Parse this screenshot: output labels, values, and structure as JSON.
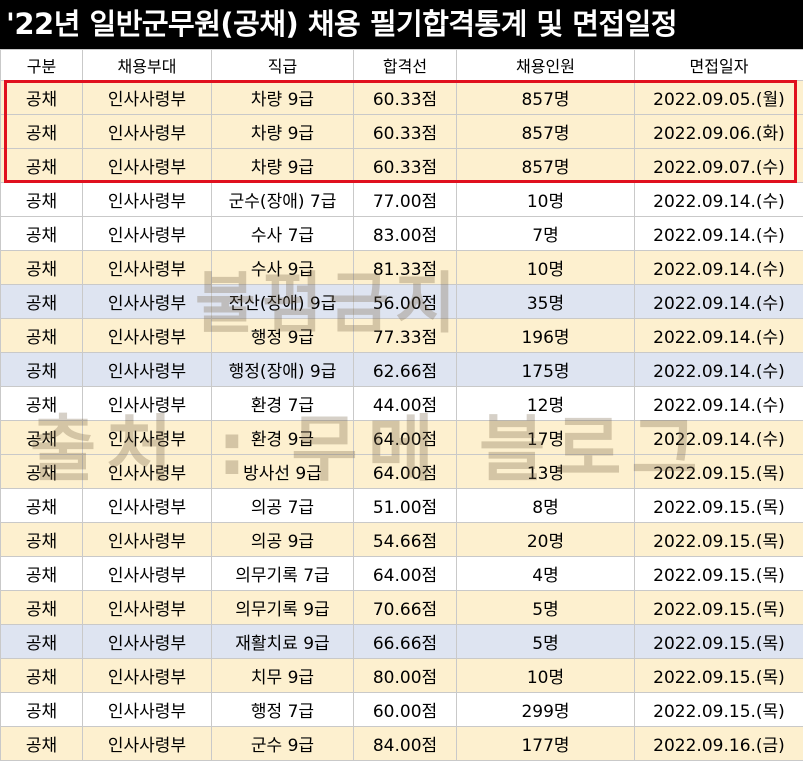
{
  "title": "'22년 일반군무원(공채) 채용 필기합격통계 및 면접일정",
  "columns": [
    "구분",
    "채용부대",
    "직급",
    "합격선",
    "채용인원",
    "면접일자"
  ],
  "rows": [
    {
      "type": "공채",
      "unit": "인사사령부",
      "grade": "차량 9급",
      "cutoff": "60.33점",
      "hires": "857명",
      "date": "2022.09.05.(월)",
      "shade": "y"
    },
    {
      "type": "공채",
      "unit": "인사사령부",
      "grade": "차량 9급",
      "cutoff": "60.33점",
      "hires": "857명",
      "date": "2022.09.06.(화)",
      "shade": "y"
    },
    {
      "type": "공채",
      "unit": "인사사령부",
      "grade": "차량 9급",
      "cutoff": "60.33점",
      "hires": "857명",
      "date": "2022.09.07.(수)",
      "shade": "y"
    },
    {
      "type": "공채",
      "unit": "인사사령부",
      "grade": "군수(장애) 7급",
      "cutoff": "77.00점",
      "hires": "10명",
      "date": "2022.09.14.(수)",
      "shade": "w"
    },
    {
      "type": "공채",
      "unit": "인사사령부",
      "grade": "수사 7급",
      "cutoff": "83.00점",
      "hires": "7명",
      "date": "2022.09.14.(수)",
      "shade": "w"
    },
    {
      "type": "공채",
      "unit": "인사사령부",
      "grade": "수사 9급",
      "cutoff": "81.33점",
      "hires": "10명",
      "date": "2022.09.14.(수)",
      "shade": "y"
    },
    {
      "type": "공채",
      "unit": "인사사령부",
      "grade": "전산(장애) 9급",
      "cutoff": "56.00점",
      "hires": "35명",
      "date": "2022.09.14.(수)",
      "shade": "b"
    },
    {
      "type": "공채",
      "unit": "인사사령부",
      "grade": "행정 9급",
      "cutoff": "77.33점",
      "hires": "196명",
      "date": "2022.09.14.(수)",
      "shade": "y"
    },
    {
      "type": "공채",
      "unit": "인사사령부",
      "grade": "행정(장애) 9급",
      "cutoff": "62.66점",
      "hires": "175명",
      "date": "2022.09.14.(수)",
      "shade": "b"
    },
    {
      "type": "공채",
      "unit": "인사사령부",
      "grade": "환경 7급",
      "cutoff": "44.00점",
      "hires": "12명",
      "date": "2022.09.14.(수)",
      "shade": "w"
    },
    {
      "type": "공채",
      "unit": "인사사령부",
      "grade": "환경 9급",
      "cutoff": "64.00점",
      "hires": "17명",
      "date": "2022.09.14.(수)",
      "shade": "y"
    },
    {
      "type": "공채",
      "unit": "인사사령부",
      "grade": "방사선 9급",
      "cutoff": "64.00점",
      "hires": "13명",
      "date": "2022.09.15.(목)",
      "shade": "y"
    },
    {
      "type": "공채",
      "unit": "인사사령부",
      "grade": "의공 7급",
      "cutoff": "51.00점",
      "hires": "8명",
      "date": "2022.09.15.(목)",
      "shade": "w"
    },
    {
      "type": "공채",
      "unit": "인사사령부",
      "grade": "의공 9급",
      "cutoff": "54.66점",
      "hires": "20명",
      "date": "2022.09.15.(목)",
      "shade": "y"
    },
    {
      "type": "공채",
      "unit": "인사사령부",
      "grade": "의무기록 7급",
      "cutoff": "64.00점",
      "hires": "4명",
      "date": "2022.09.15.(목)",
      "shade": "w"
    },
    {
      "type": "공채",
      "unit": "인사사령부",
      "grade": "의무기록 9급",
      "cutoff": "70.66점",
      "hires": "5명",
      "date": "2022.09.15.(목)",
      "shade": "y"
    },
    {
      "type": "공채",
      "unit": "인사사령부",
      "grade": "재활치료 9급",
      "cutoff": "66.66점",
      "hires": "5명",
      "date": "2022.09.15.(목)",
      "shade": "b"
    },
    {
      "type": "공채",
      "unit": "인사사령부",
      "grade": "치무 9급",
      "cutoff": "80.00점",
      "hires": "10명",
      "date": "2022.09.15.(목)",
      "shade": "y"
    },
    {
      "type": "공채",
      "unit": "인사사령부",
      "grade": "행정 7급",
      "cutoff": "60.00점",
      "hires": "299명",
      "date": "2022.09.15.(목)",
      "shade": "w"
    },
    {
      "type": "공채",
      "unit": "인사사령부",
      "grade": "군수 9급",
      "cutoff": "84.00점",
      "hires": "177명",
      "date": "2022.09.16.(금)",
      "shade": "y"
    }
  ],
  "watermark": {
    "line1": "불펌금지",
    "line2": "출처 : 무메 블로그"
  },
  "colors": {
    "highlight_border": "#e0101e",
    "yellow_row": "#fdf0cf",
    "blue_row": "#dee4f1",
    "title_bg": "#000000"
  }
}
